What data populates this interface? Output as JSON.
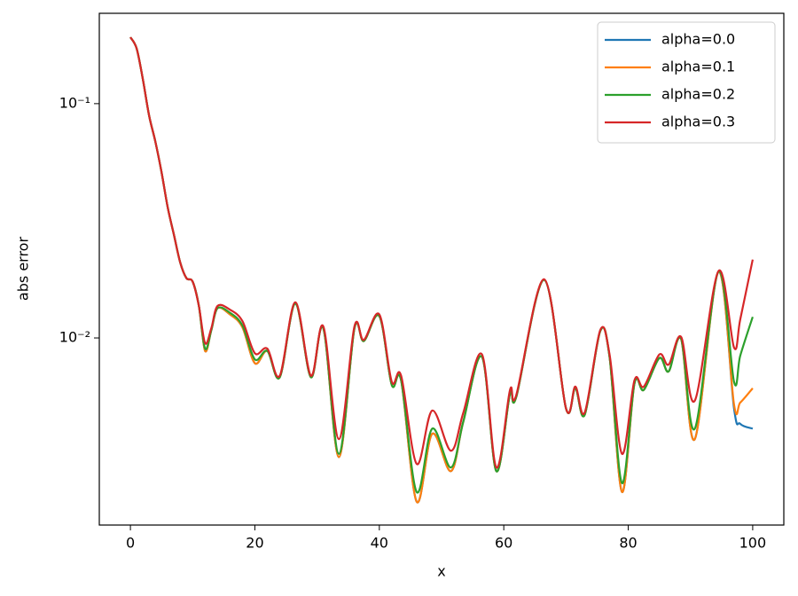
{
  "chart_data": {
    "type": "line",
    "xlabel": "x",
    "ylabel": "abs error",
    "x": [
      0,
      1,
      2,
      3,
      4,
      5,
      6,
      7,
      8,
      9,
      10,
      11,
      12,
      13,
      14,
      16,
      18,
      20,
      22,
      24,
      26.5,
      29,
      31,
      33.5,
      36,
      37.5,
      40,
      42,
      43.5,
      46,
      48.5,
      51.5,
      53.5,
      56.5,
      58.8,
      61,
      62,
      66.5,
      70,
      71.5,
      73,
      75.5,
      77,
      79,
      81,
      82.5,
      85,
      86.5,
      88.5,
      90.7,
      94.5,
      97,
      98,
      100
    ],
    "series": [
      {
        "name": "alpha=0.0",
        "color": "#1f77b4",
        "values": [
          0.192,
          0.172,
          0.127,
          0.089,
          0.069,
          0.051,
          0.036,
          0.0275,
          0.021,
          0.018,
          0.0174,
          0.0137,
          0.0088,
          0.0108,
          0.0134,
          0.0126,
          0.0111,
          0.0078,
          0.0088,
          0.0068,
          0.014,
          0.0068,
          0.011,
          0.0031,
          0.011,
          0.0097,
          0.0124,
          0.0063,
          0.0066,
          0.002,
          0.0039,
          0.0027,
          0.0044,
          0.0083,
          0.0027,
          0.0058,
          0.0056,
          0.0177,
          0.005,
          0.0061,
          0.0047,
          0.0107,
          0.0083,
          0.0022,
          0.0064,
          0.006,
          0.0082,
          0.0072,
          0.0099,
          0.0037,
          0.0192,
          0.005,
          0.0043,
          0.0041
        ]
      },
      {
        "name": "alpha=0.1",
        "color": "#ff7f0e",
        "values": [
          0.192,
          0.172,
          0.127,
          0.089,
          0.069,
          0.051,
          0.036,
          0.0275,
          0.021,
          0.018,
          0.0174,
          0.0137,
          0.0088,
          0.0108,
          0.0134,
          0.0126,
          0.0111,
          0.0078,
          0.0088,
          0.0068,
          0.014,
          0.0068,
          0.011,
          0.0031,
          0.011,
          0.0097,
          0.0124,
          0.0063,
          0.0066,
          0.002,
          0.0039,
          0.0027,
          0.0044,
          0.0083,
          0.0027,
          0.0058,
          0.0056,
          0.0177,
          0.005,
          0.0061,
          0.0047,
          0.0107,
          0.0083,
          0.0022,
          0.0064,
          0.006,
          0.0082,
          0.0072,
          0.0099,
          0.0037,
          0.0192,
          0.0052,
          0.0053,
          0.0061
        ]
      },
      {
        "name": "alpha=0.2",
        "color": "#2ca02c",
        "values": [
          0.192,
          0.172,
          0.127,
          0.089,
          0.069,
          0.051,
          0.036,
          0.0275,
          0.021,
          0.018,
          0.0174,
          0.0137,
          0.009,
          0.0108,
          0.0134,
          0.0128,
          0.0113,
          0.0081,
          0.0088,
          0.0068,
          0.014,
          0.0068,
          0.011,
          0.0032,
          0.011,
          0.0097,
          0.0124,
          0.0063,
          0.0066,
          0.0022,
          0.0041,
          0.0028,
          0.0044,
          0.0083,
          0.0027,
          0.0058,
          0.0056,
          0.0177,
          0.005,
          0.0061,
          0.0047,
          0.0107,
          0.0083,
          0.0024,
          0.0064,
          0.006,
          0.0082,
          0.0072,
          0.0099,
          0.0041,
          0.0192,
          0.0065,
          0.0084,
          0.0123
        ]
      },
      {
        "name": "alpha=0.3",
        "color": "#d62728",
        "values": [
          0.192,
          0.172,
          0.127,
          0.089,
          0.069,
          0.051,
          0.036,
          0.0275,
          0.021,
          0.018,
          0.0174,
          0.0137,
          0.0095,
          0.011,
          0.0137,
          0.0132,
          0.0118,
          0.0086,
          0.009,
          0.0069,
          0.0142,
          0.0069,
          0.0112,
          0.0037,
          0.0112,
          0.0098,
          0.0126,
          0.0065,
          0.0069,
          0.0029,
          0.0049,
          0.0033,
          0.0048,
          0.0085,
          0.0028,
          0.006,
          0.0057,
          0.0178,
          0.005,
          0.0062,
          0.0048,
          0.0108,
          0.0085,
          0.0032,
          0.0066,
          0.0062,
          0.0085,
          0.0077,
          0.0101,
          0.0054,
          0.0193,
          0.0091,
          0.012,
          0.0216
        ]
      }
    ],
    "xlim": [
      -5,
      105
    ],
    "xticks": [
      0,
      20,
      40,
      60,
      80,
      100
    ],
    "ylim": [
      0.00159,
      0.243
    ],
    "yscale": "log",
    "yticks": [
      {
        "value": 0.01,
        "label": "10⁻²"
      },
      {
        "value": 0.1,
        "label": "10⁻¹"
      }
    ],
    "grid": false,
    "legend": "upper right"
  }
}
